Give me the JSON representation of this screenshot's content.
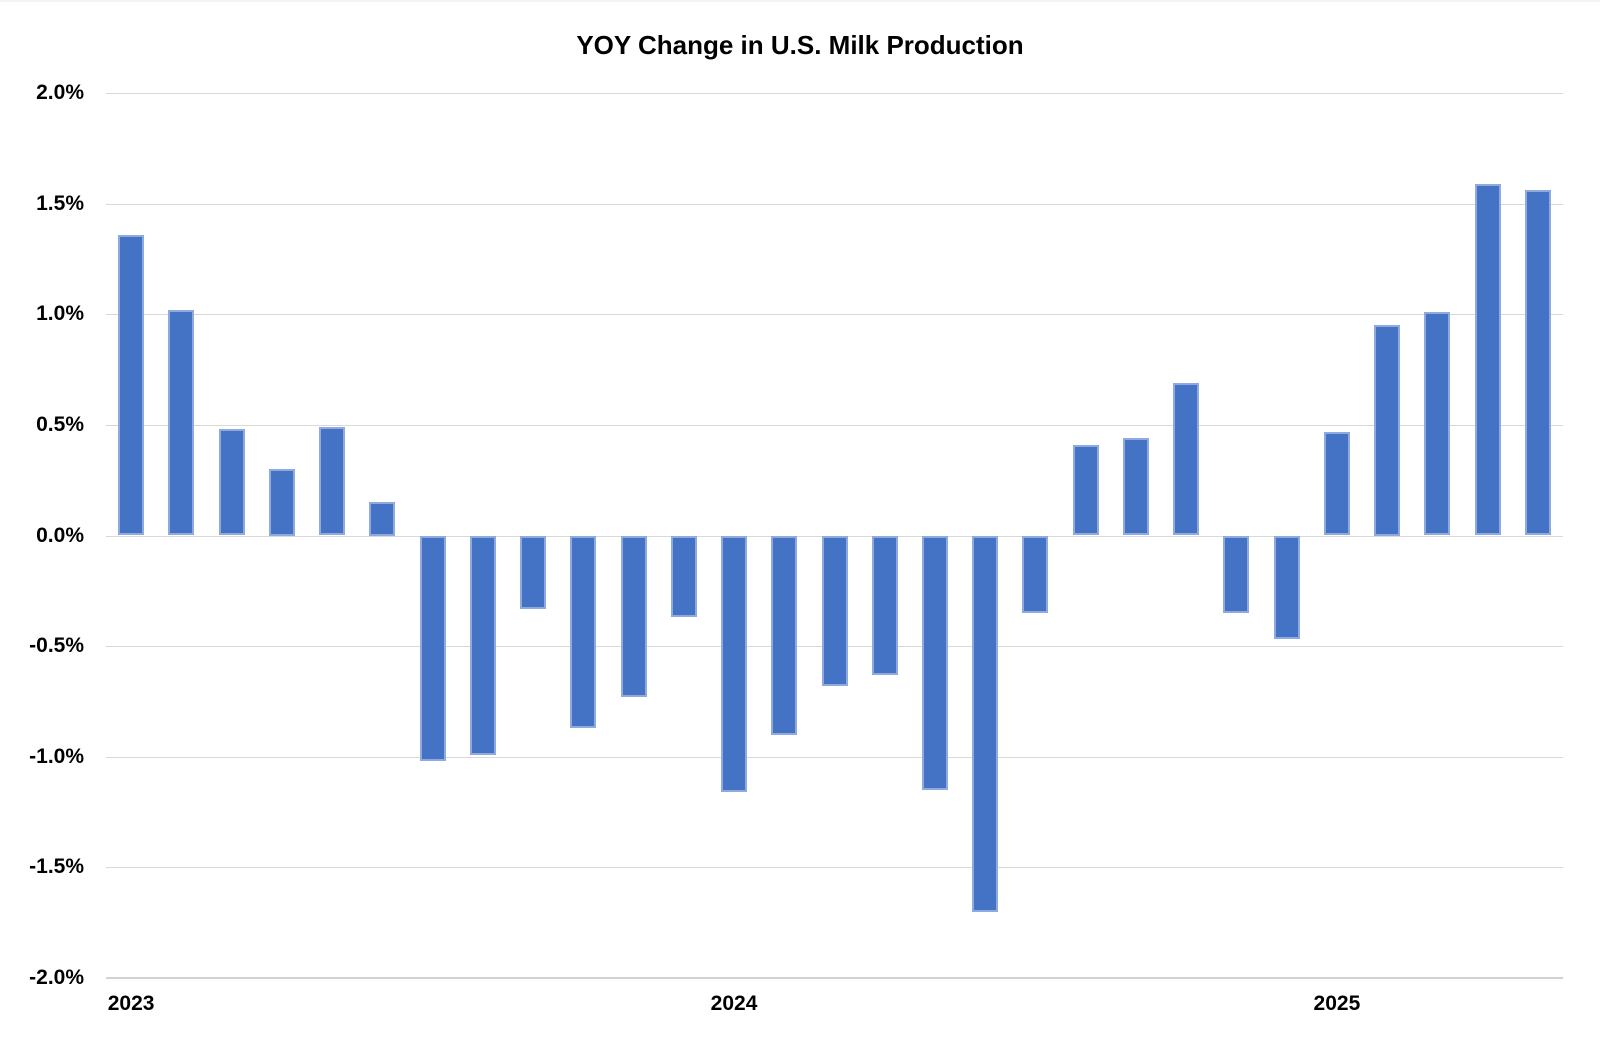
{
  "chart_data": {
    "type": "bar",
    "title": "YOY Change in U.S. Milk Production",
    "categories": [
      "2023-01",
      "2023-02",
      "2023-03",
      "2023-04",
      "2023-05",
      "2023-06",
      "2023-07",
      "2023-08",
      "2023-09",
      "2023-10",
      "2023-11",
      "2023-12",
      "2024-01",
      "2024-02",
      "2024-03",
      "2024-04",
      "2024-05",
      "2024-06",
      "2024-07",
      "2024-08",
      "2024-09",
      "2024-10",
      "2024-11",
      "2024-12",
      "2025-01",
      "2025-02",
      "2025-03",
      "2025-04",
      "2025-05"
    ],
    "values": [
      1.36,
      1.02,
      0.48,
      0.3,
      0.49,
      0.15,
      -1.02,
      -0.99,
      -0.33,
      -0.87,
      -0.73,
      -0.37,
      -1.16,
      -0.9,
      -0.68,
      -0.63,
      -1.15,
      -1.7,
      -0.35,
      0.41,
      0.44,
      0.69,
      -0.35,
      -0.47,
      0.47,
      0.95,
      1.01,
      1.59,
      1.56
    ],
    "xlabel": "",
    "ylabel": "",
    "ylim": [
      -2.0,
      2.0
    ],
    "ytick_step": 0.5,
    "ytick_labels": [
      "2.0%",
      "1.5%",
      "1.0%",
      "0.5%",
      "0.0%",
      "-0.5%",
      "-1.0%",
      "-1.5%",
      "-2.0%"
    ],
    "xtick_labels": [
      {
        "label": "2023",
        "bar_index": 0
      },
      {
        "label": "2024",
        "bar_index": 12
      },
      {
        "label": "2025",
        "bar_index": 24
      }
    ],
    "grid": true,
    "legend": "none",
    "colors": {
      "bar_fill": "#4472C4",
      "bar_border": "#8FAADC",
      "gridline": "#D9D9D9",
      "axis_line": "#D2D2D2",
      "text": "#000000",
      "background": "#FFFFFF"
    }
  }
}
